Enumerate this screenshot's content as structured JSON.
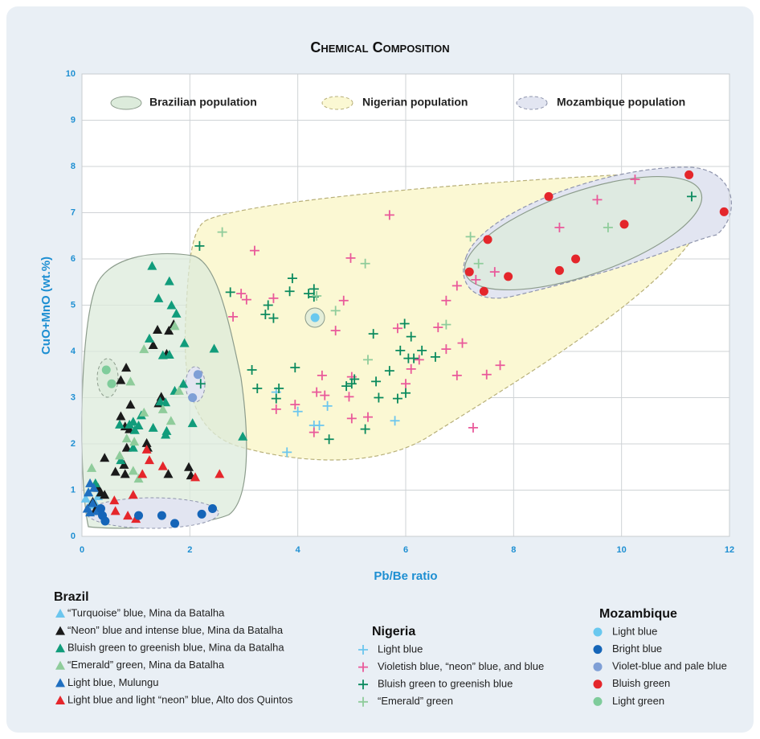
{
  "chart_data": {
    "type": "scatter",
    "title": "Chemical Composition",
    "x_label": "Pb/Be ratio",
    "y_label": "CuO+MnO (wt.%)",
    "xlim": [
      0,
      12
    ],
    "ylim": [
      0,
      10
    ],
    "xticks": [
      0,
      2,
      4,
      6,
      8,
      10,
      12
    ],
    "yticks": [
      0,
      1,
      2,
      3,
      4,
      5,
      6,
      7,
      8,
      9,
      10
    ],
    "grid": true,
    "populations": [
      {
        "name": "Brazilian population",
        "fill": "#dcebdb",
        "stroke": "#8c9c8c"
      },
      {
        "name": "Nigerian population",
        "fill": "#fbf8d3",
        "stroke": "#b8b07a"
      },
      {
        "name": "Mozambique population",
        "fill": "#e2e5f1",
        "stroke": "#8f95ad"
      }
    ],
    "groups": [
      {
        "name": "Brazil",
        "marker": "triangle",
        "series": [
          {
            "name": "“Turquoise” blue, Mina da Batalha",
            "color": "#6cc6ee",
            "x": [
              0.07,
              0.15,
              0.24,
              0.12,
              0.3
            ],
            "y": [
              0.82,
              0.68,
              0.73,
              0.96,
              0.87
            ]
          },
          {
            "name": "“Neon” blue and intense blue, Mina da Batalha",
            "color": "#1a1a1a",
            "x": [
              1.7,
              1.61,
              1.4,
              1.32,
              1.57,
              0.82,
              0.72,
              1.47,
              1.42,
              0.9,
              0.72,
              0.8,
              0.88,
              1.2,
              1.22,
              0.83,
              0.78,
              0.62,
              0.42,
              0.8,
              1.6,
              1.98,
              2.02,
              0.3,
              0.35,
              0.42,
              0.2,
              0.25,
              0.32
            ],
            "y": [
              4.59,
              4.45,
              4.47,
              4.14,
              3.95,
              3.65,
              3.38,
              3.02,
              2.88,
              2.85,
              2.6,
              2.38,
              2.32,
              2.02,
              1.92,
              1.92,
              1.55,
              1.4,
              1.7,
              1.35,
              1.35,
              1.5,
              1.32,
              1.05,
              0.95,
              0.9,
              0.75,
              0.58,
              0.55
            ]
          },
          {
            "name": "Bluish green to greenish blue, Mina da Batalha",
            "color": "#119c7b",
            "x": [
              1.3,
              1.62,
              1.42,
              1.66,
              1.75,
              1.9,
              1.5,
              1.62,
              1.25,
              2.45,
              1.88,
              1.72,
              1.45,
              1.55,
              0.7,
              0.88,
              0.95,
              0.98,
              1.05,
              1.32,
              1.1,
              1.57,
              1.55,
              2.05,
              2.98,
              0.95,
              0.72,
              0.25
            ],
            "y": [
              5.85,
              5.52,
              5.15,
              5.0,
              4.82,
              4.18,
              3.92,
              3.93,
              4.28,
              4.06,
              3.3,
              3.15,
              2.92,
              2.9,
              2.42,
              2.42,
              2.48,
              2.3,
              2.4,
              2.35,
              2.62,
              2.28,
              2.2,
              2.45,
              2.16,
              1.92,
              1.65,
              1.15
            ]
          },
          {
            "name": "“Emerald” green, Mina da Batalha",
            "color": "#8fcc9b",
            "x": [
              1.15,
              1.72,
              1.8,
              0.9,
              1.15,
              1.5,
              1.65,
              0.83,
              0.97,
              1.05,
              0.7,
              0.18,
              0.95
            ],
            "y": [
              4.05,
              4.55,
              3.15,
              3.35,
              2.68,
              2.75,
              2.5,
              2.12,
              2.05,
              1.25,
              1.75,
              1.48,
              1.42
            ]
          },
          {
            "name": "Light blue, Mulungu",
            "color": "#1f6fc0",
            "x": [
              0.15,
              0.22,
              0.12,
              0.2,
              0.1,
              0.28,
              0.15
            ],
            "y": [
              1.15,
              1.05,
              0.95,
              0.72,
              0.6,
              0.55,
              0.52
            ]
          },
          {
            "name": "Light blue and light “neon” blue, Alto dos Quintos",
            "color": "#e5262b",
            "x": [
              1.25,
              1.2,
              1.5,
              1.12,
              0.95,
              2.1,
              2.55,
              0.6,
              0.62,
              0.85,
              1.0
            ],
            "y": [
              1.65,
              1.88,
              1.52,
              1.35,
              0.9,
              1.28,
              1.35,
              0.78,
              0.55,
              0.45,
              0.38
            ]
          }
        ]
      },
      {
        "name": "Nigeria",
        "marker": "plus",
        "series": [
          {
            "name": "Light blue",
            "color": "#6cc6ee",
            "x": [
              3.6,
              4.0,
              3.8,
              4.3,
              4.4,
              4.55,
              5.8
            ],
            "y": [
              3.12,
              2.7,
              1.82,
              2.4,
              2.4,
              2.82,
              2.5
            ]
          },
          {
            "name": "Violetish blue, “neon” blue, and blue",
            "color": "#e9599a",
            "x": [
              2.8,
              2.95,
              3.05,
              3.2,
              3.55,
              3.6,
              3.95,
              4.3,
              4.35,
              4.45,
              4.5,
              4.7,
              4.85,
              4.95,
              5.0,
              4.98,
              5.0,
              5.3,
              5.7,
              5.85,
              6.0,
              6.1,
              6.25,
              6.6,
              6.75,
              6.75,
              6.95,
              6.95,
              7.05,
              7.25,
              7.3,
              7.5,
              7.65,
              7.75,
              8.85,
              9.55,
              10.25
            ],
            "y": [
              4.75,
              5.25,
              5.12,
              6.18,
              5.15,
              2.75,
              2.85,
              2.25,
              3.12,
              3.48,
              3.05,
              4.45,
              5.1,
              3.02,
              3.45,
              6.02,
              2.55,
              2.58,
              6.95,
              4.5,
              3.3,
              3.62,
              3.82,
              4.52,
              5.1,
              4.05,
              3.48,
              5.42,
              4.18,
              2.35,
              5.55,
              3.5,
              5.72,
              3.7,
              6.68,
              7.28,
              7.72
            ]
          },
          {
            "name": "Bluish green to greenish blue",
            "color": "#0b8a5e",
            "x": [
              2.18,
              2.75,
              3.4,
              3.45,
              3.55,
              3.85,
              3.9,
              4.2,
              4.3,
              4.3,
              3.15,
              3.25,
              3.6,
              3.65,
              3.95,
              4.58,
              4.9,
              5.05,
              5.0,
              5.25,
              5.4,
              5.45,
              5.5,
              5.7,
              5.85,
              5.9,
              5.98,
              6.0,
              6.1,
              6.05,
              6.15,
              6.3,
              6.55,
              11.3,
              2.2
            ],
            "y": [
              6.28,
              5.28,
              4.8,
              5.0,
              4.72,
              5.3,
              5.58,
              5.25,
              5.35,
              5.18,
              3.6,
              3.2,
              2.98,
              3.2,
              3.65,
              2.1,
              3.25,
              3.4,
              3.3,
              2.32,
              4.38,
              3.35,
              3.0,
              3.58,
              2.98,
              4.02,
              4.6,
              3.1,
              4.32,
              3.85,
              3.85,
              4.02,
              3.88,
              7.35,
              3.3
            ]
          },
          {
            "name": "“Emerald” green",
            "color": "#8fcc9b",
            "x": [
              2.6,
              4.35,
              4.7,
              5.25,
              5.3,
              6.75,
              7.2,
              7.35,
              9.75
            ],
            "y": [
              6.58,
              5.2,
              4.88,
              5.9,
              3.82,
              4.58,
              6.48,
              5.9,
              6.68
            ]
          }
        ]
      },
      {
        "name": "Mozambique",
        "marker": "circle",
        "series": [
          {
            "name": "Light blue",
            "color": "#69c8ef",
            "x": [
              4.32
            ],
            "y": [
              4.73
            ]
          },
          {
            "name": "Bright blue",
            "color": "#1565b8",
            "x": [
              0.35,
              0.38,
              0.43,
              1.05,
              1.48,
              1.72,
              2.22,
              2.42
            ],
            "y": [
              0.6,
              0.45,
              0.33,
              0.45,
              0.45,
              0.28,
              0.48,
              0.6
            ]
          },
          {
            "name": "Violet-blue and pale blue",
            "color": "#7f9fd6",
            "x": [
              2.15,
              2.05
            ],
            "y": [
              3.5,
              3.0
            ]
          },
          {
            "name": "Bluish green",
            "color": "#e4262b",
            "x": [
              7.18,
              7.45,
              7.52,
              7.9,
              8.65,
              8.85,
              9.15,
              10.05,
              11.25,
              11.9
            ],
            "y": [
              5.72,
              5.3,
              6.42,
              5.62,
              7.35,
              5.75,
              6.0,
              6.75,
              7.82,
              7.02
            ]
          },
          {
            "name": "Light green",
            "color": "#7fcc9b",
            "x": [
              0.45,
              0.55
            ],
            "y": [
              3.6,
              3.3
            ]
          }
        ]
      }
    ]
  }
}
